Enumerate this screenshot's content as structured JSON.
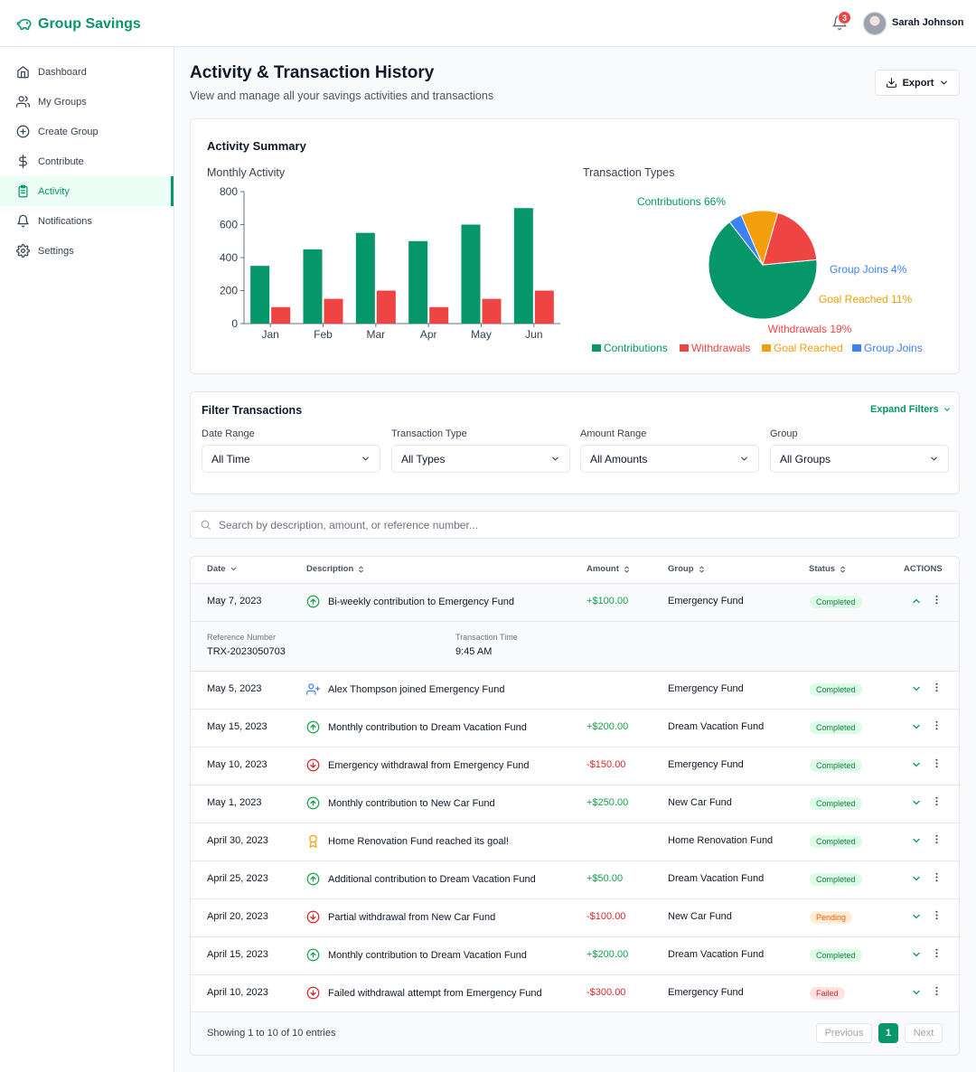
{
  "app": {
    "name": "Group Savings"
  },
  "header": {
    "notification_count": "3",
    "user_name": "Sarah Johnson"
  },
  "sidebar": {
    "items": [
      {
        "label": "Dashboard",
        "icon": "home-icon"
      },
      {
        "label": "My Groups",
        "icon": "users-icon"
      },
      {
        "label": "Create Group",
        "icon": "plus-circle-icon"
      },
      {
        "label": "Contribute",
        "icon": "dollar-icon"
      },
      {
        "label": "Activity",
        "icon": "clipboard-icon",
        "active": true
      },
      {
        "label": "Notifications",
        "icon": "bell-icon"
      },
      {
        "label": "Settings",
        "icon": "gear-icon"
      }
    ]
  },
  "page": {
    "title": "Activity & Transaction History",
    "subtitle": "View and manage all your savings activities and transactions",
    "export_label": "Export"
  },
  "summary": {
    "title": "Activity Summary",
    "bar_title": "Monthly Activity",
    "pie_title": "Transaction Types"
  },
  "chart_data": [
    {
      "type": "bar",
      "title": "Monthly Activity",
      "categories": [
        "Jan",
        "Feb",
        "Mar",
        "Apr",
        "May",
        "Jun"
      ],
      "series": [
        {
          "values": [
            350,
            450,
            550,
            500,
            600,
            700
          ],
          "color": "#059669"
        },
        {
          "values": [
            100,
            150,
            200,
            100,
            150,
            200
          ],
          "color": "#ef4444"
        }
      ],
      "ylim": [
        0,
        800
      ],
      "yticks": [
        0,
        200,
        400,
        600,
        800
      ],
      "grid": false
    },
    {
      "type": "pie",
      "title": "Transaction Types",
      "slices": [
        {
          "name": "Contributions",
          "value": 66,
          "label": "Contributions 66%",
          "color": "#059669"
        },
        {
          "name": "Group Joins",
          "value": 4,
          "label": "Group Joins 4%",
          "color": "#3b82f6"
        },
        {
          "name": "Goal Reached",
          "value": 11,
          "label": "Goal Reached 11%",
          "color": "#f59e0b"
        },
        {
          "name": "Withdrawals",
          "value": 19,
          "label": "Withdrawals 19%",
          "color": "#ef4444"
        }
      ],
      "legend": [
        "Contributions",
        "Withdrawals",
        "Goal Reached",
        "Group Joins"
      ],
      "legend_position": "bottom"
    }
  ],
  "filters": {
    "title": "Filter Transactions",
    "expand_label": "Expand Filters",
    "fields": [
      {
        "label": "Date Range",
        "value": "All Time"
      },
      {
        "label": "Transaction Type",
        "value": "All Types"
      },
      {
        "label": "Amount Range",
        "value": "All Amounts"
      },
      {
        "label": "Group",
        "value": "All Groups"
      }
    ]
  },
  "search": {
    "placeholder": "Search by description, amount, or reference number..."
  },
  "table": {
    "headers": [
      "Date",
      "Description",
      "Amount",
      "Group",
      "Status",
      "ACTIONS"
    ],
    "expanded": {
      "ref_label": "Reference Number",
      "ref_value": "TRX-2023050703",
      "time_label": "Transaction Time",
      "time_value": "9:45 AM"
    },
    "rows": [
      {
        "date": "May 7, 2023",
        "icon": "arrow-up-circle-icon",
        "description": "Bi-weekly contribution to Emergency Fund",
        "amount": "+$100.00",
        "kind": "pos",
        "group": "Emergency Fund",
        "status": "Completed"
      },
      {
        "date": "May 5, 2023",
        "icon": "user-plus-icon",
        "description": "Alex Thompson joined Emergency Fund",
        "amount": "",
        "kind": "none",
        "group": "Emergency Fund",
        "status": "Completed"
      },
      {
        "date": "May 15, 2023",
        "icon": "arrow-up-circle-icon",
        "description": "Monthly contribution to Dream Vacation Fund",
        "amount": "+$200.00",
        "kind": "pos",
        "group": "Dream Vacation Fund",
        "status": "Completed"
      },
      {
        "date": "May 10, 2023",
        "icon": "arrow-down-circle-icon",
        "description": "Emergency withdrawal from Emergency Fund",
        "amount": "-$150.00",
        "kind": "neg",
        "group": "Emergency Fund",
        "status": "Completed"
      },
      {
        "date": "May 1, 2023",
        "icon": "arrow-up-circle-icon",
        "description": "Monthly contribution to New Car Fund",
        "amount": "+$250.00",
        "kind": "pos",
        "group": "New Car Fund",
        "status": "Completed"
      },
      {
        "date": "April 30, 2023",
        "icon": "award-icon",
        "description": "Home Renovation Fund reached its goal!",
        "amount": "",
        "kind": "none",
        "group": "Home Renovation Fund",
        "status": "Completed"
      },
      {
        "date": "April 25, 2023",
        "icon": "arrow-up-circle-icon",
        "description": "Additional contribution to Dream Vacation Fund",
        "amount": "+$50.00",
        "kind": "pos",
        "group": "Dream Vacation Fund",
        "status": "Completed"
      },
      {
        "date": "April 20, 2023",
        "icon": "arrow-down-circle-icon",
        "description": "Partial withdrawal from New Car Fund",
        "amount": "-$100.00",
        "kind": "neg",
        "group": "New Car Fund",
        "status": "Pending"
      },
      {
        "date": "April 15, 2023",
        "icon": "arrow-up-circle-icon",
        "description": "Monthly contribution to Dream Vacation Fund",
        "amount": "+$200.00",
        "kind": "pos",
        "group": "Dream Vacation Fund",
        "status": "Completed"
      },
      {
        "date": "April 10, 2023",
        "icon": "arrow-down-circle-icon",
        "description": "Failed withdrawal attempt from Emergency Fund",
        "amount": "-$300.00",
        "kind": "neg",
        "group": "Emergency Fund",
        "status": "Failed"
      }
    ]
  },
  "pagination": {
    "summary": "Showing 1 to 10 of 10 entries",
    "previous": "Previous",
    "current": "1",
    "next": "Next"
  }
}
